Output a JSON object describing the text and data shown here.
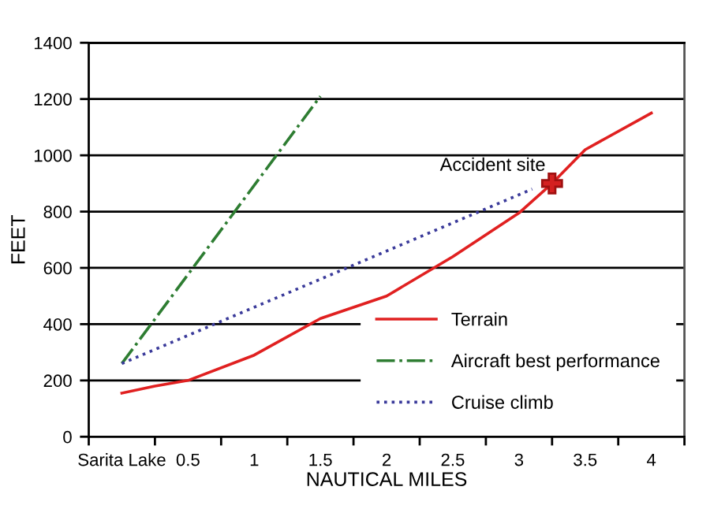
{
  "chart_data": {
    "type": "line",
    "xlabel": "NAUTICAL MILES",
    "ylabel": "FEET",
    "xlim": [
      -0.25,
      4.25
    ],
    "xticks": [
      {
        "value": -0.25,
        "label": null
      },
      {
        "value": 0,
        "label": "Sarita Lake"
      },
      {
        "value": 0.25,
        "label": null
      },
      0.5,
      {
        "value": 0.75,
        "label": null
      },
      1,
      {
        "value": 1.25,
        "label": null
      },
      1.5,
      {
        "value": 1.75,
        "label": null
      },
      2,
      {
        "value": 2.25,
        "label": null
      },
      2.5,
      {
        "value": 2.75,
        "label": null
      },
      3,
      {
        "value": 3.25,
        "label": null
      },
      3.5,
      {
        "value": 3.75,
        "label": null
      },
      4,
      {
        "value": 4.25,
        "label": null
      }
    ],
    "ylim": [
      0,
      1400
    ],
    "yticks": [
      0,
      200,
      400,
      600,
      800,
      1000,
      1200,
      1400
    ],
    "grid": "y",
    "legend": "bottom right",
    "marker": "none",
    "series": [
      {
        "name": "Terrain",
        "color": "#e02020",
        "line_style": "solid",
        "x": [
          0,
          0.25,
          0.5,
          1,
          1.5,
          2,
          2.5,
          3,
          3.25,
          3.5,
          4
        ],
        "values": [
          155,
          180,
          200,
          290,
          420,
          500,
          640,
          795,
          900,
          1020,
          1150
        ]
      },
      {
        "name": "Aircraft best performance",
        "color": "#2e7d32",
        "line_style": "dashdot",
        "x": [
          0,
          1.5
        ],
        "values": [
          260,
          1210
        ]
      },
      {
        "name": "Cruise climb",
        "color": "#3a3a9a",
        "line_style": "dotted",
        "x": [
          0,
          3.1
        ],
        "values": [
          260,
          880
        ]
      }
    ],
    "annotations": [
      {
        "text": "Accident site",
        "x": 3.25,
        "y": 900
      }
    ]
  }
}
